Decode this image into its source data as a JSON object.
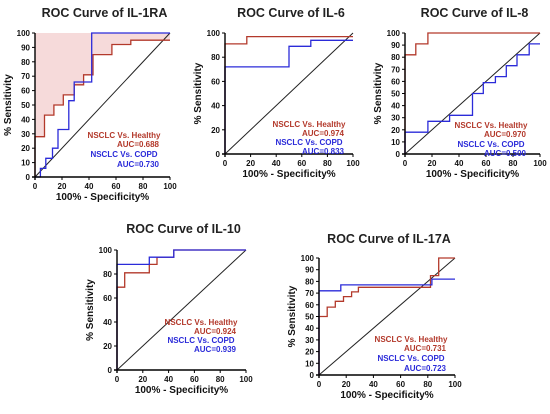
{
  "colors": {
    "healthy": "#b3392b",
    "copd": "#2b2bd9",
    "axis": "#000000",
    "diagonal": "#222222"
  },
  "chart_data": [
    {
      "type": "line",
      "title": "ROC Curve of IL-1RA",
      "xlabel": "100% - Specificity%",
      "ylabel": "% Sensitivity",
      "xlim": [
        0,
        100
      ],
      "ylim": [
        0,
        100
      ],
      "xticks": [
        0,
        20,
        40,
        60,
        80,
        100
      ],
      "yticks": [
        0,
        10,
        20,
        30,
        40,
        50,
        60,
        70,
        80,
        90,
        100
      ],
      "xtick_labels": [
        "0",
        "20",
        "40",
        "60",
        "80",
        "100"
      ],
      "ytick_labels": [
        "0",
        "10",
        "20",
        "30",
        "40",
        "50",
        "60",
        "70",
        "80",
        "90",
        "100"
      ],
      "series": [
        {
          "name": "NSCLC Vs. Healthy",
          "auc": "AUC=0.688",
          "color": "#b3392b",
          "x": [
            0,
            0,
            7,
            7,
            14,
            14,
            21,
            21,
            29,
            29,
            36,
            36,
            43,
            43,
            57,
            57,
            71,
            71,
            100
          ],
          "y": [
            0,
            28,
            28,
            43,
            43,
            50,
            50,
            57,
            57,
            64,
            64,
            71,
            71,
            85,
            85,
            92,
            92,
            95,
            95
          ]
        },
        {
          "name": "NSCLC Vs. COPD",
          "auc": "AUC=0.730",
          "color": "#2b2bd9",
          "x": [
            0,
            4,
            4,
            8,
            8,
            13,
            13,
            17,
            17,
            25,
            25,
            29,
            29,
            33,
            33,
            42,
            42,
            100
          ],
          "y": [
            0,
            0,
            6,
            6,
            13,
            13,
            20,
            20,
            33,
            33,
            53,
            53,
            66,
            66,
            66,
            66,
            100,
            100
          ]
        }
      ]
    },
    {
      "type": "line",
      "title": "ROC Curve of IL-6",
      "xlabel": "100% - Specificity%",
      "ylabel": "% Sensitivity",
      "xlim": [
        0,
        100
      ],
      "ylim": [
        0,
        100
      ],
      "xticks": [
        0,
        20,
        40,
        60,
        80,
        100
      ],
      "yticks": [
        0,
        20,
        40,
        60,
        80,
        100
      ],
      "xtick_labels": [
        "0",
        "20",
        "40",
        "60",
        "80",
        "100"
      ],
      "ytick_labels": [
        "0",
        "20",
        "40",
        "60",
        "80",
        "100"
      ],
      "series": [
        {
          "name": "NSCLC Vs. Healthy",
          "auc": "AUC=0.974",
          "color": "#b3392b",
          "x": [
            0,
            0,
            17,
            17,
            100
          ],
          "y": [
            0,
            91,
            91,
            97,
            97
          ]
        },
        {
          "name": "NSCLC Vs. COPD",
          "auc": "AUC=0.833",
          "color": "#2b2bd9",
          "x": [
            0,
            0,
            50,
            50,
            67,
            67,
            100
          ],
          "y": [
            0,
            72,
            72,
            89,
            89,
            94,
            94
          ]
        }
      ]
    },
    {
      "type": "line",
      "title": "ROC Curve of IL-8",
      "xlabel": "100% - Specificity%",
      "ylabel": "% Sensitivity",
      "xlim": [
        0,
        100
      ],
      "ylim": [
        0,
        100
      ],
      "xticks": [
        0,
        20,
        40,
        60,
        80,
        100
      ],
      "yticks": [
        0,
        10,
        20,
        30,
        40,
        50,
        60,
        70,
        80,
        90,
        100
      ],
      "xtick_labels": [
        "0",
        "20",
        "40",
        "60",
        "80",
        "100"
      ],
      "ytick_labels": [
        "0",
        "10",
        "20",
        "30",
        "40",
        "50",
        "60",
        "70",
        "80",
        "90",
        "100"
      ],
      "series": [
        {
          "name": "NSCLC Vs. Healthy",
          "auc": "AUC=0.970",
          "color": "#b3392b",
          "x": [
            0,
            0,
            8,
            8,
            17,
            17,
            100
          ],
          "y": [
            0,
            82,
            82,
            91,
            91,
            100,
            100
          ]
        },
        {
          "name": "NSCLC Vs. COPD",
          "auc": "AUC=0.500",
          "color": "#2b2bd9",
          "x": [
            0,
            0,
            17,
            17,
            33,
            33,
            50,
            50,
            58,
            58,
            67,
            67,
            75,
            75,
            83,
            83,
            92,
            92,
            100
          ],
          "y": [
            0,
            18,
            18,
            27,
            27,
            32,
            32,
            50,
            50,
            59,
            59,
            64,
            64,
            73,
            73,
            82,
            82,
            91,
            91
          ]
        }
      ]
    },
    {
      "type": "line",
      "title": "ROC Curve of IL-10",
      "xlabel": "100% - Specificity%",
      "ylabel": "% Sensitivity",
      "xlim": [
        0,
        100
      ],
      "ylim": [
        0,
        100
      ],
      "xticks": [
        0,
        20,
        40,
        60,
        80,
        100
      ],
      "yticks": [
        0,
        20,
        40,
        60,
        80,
        100
      ],
      "xtick_labels": [
        "0",
        "20",
        "40",
        "60",
        "80",
        "100"
      ],
      "ytick_labels": [
        "0",
        "20",
        "40",
        "60",
        "80",
        "100"
      ],
      "series": [
        {
          "name": "NSCLC Vs. Healthy",
          "auc": "AUC=0.924",
          "color": "#b3392b",
          "x": [
            0,
            0,
            6,
            6,
            25,
            25,
            31,
            31,
            44,
            44,
            100
          ],
          "y": [
            0,
            69,
            69,
            81,
            81,
            88,
            88,
            94,
            94,
            100,
            100
          ]
        },
        {
          "name": "NSCLC Vs. COPD",
          "auc": "AUC=0.939",
          "color": "#2b2bd9",
          "x": [
            0,
            0,
            25,
            25,
            44,
            44,
            100
          ],
          "y": [
            0,
            88,
            88,
            94,
            94,
            100,
            100
          ]
        }
      ]
    },
    {
      "type": "line",
      "title": "ROC Curve of IL-17A",
      "xlabel": "100% - Specificity%",
      "ylabel": "% Sensitivity",
      "xlim": [
        0,
        100
      ],
      "ylim": [
        0,
        100
      ],
      "xticks": [
        0,
        20,
        40,
        60,
        80,
        100
      ],
      "yticks": [
        0,
        10,
        20,
        30,
        40,
        50,
        60,
        70,
        80,
        90,
        100
      ],
      "xtick_labels": [
        "0",
        "20",
        "40",
        "60",
        "80",
        "100"
      ],
      "ytick_labels": [
        "0",
        "10",
        "20",
        "30",
        "40",
        "50",
        "60",
        "70",
        "80",
        "90",
        "100"
      ],
      "series": [
        {
          "name": "NSCLC Vs. Healthy",
          "auc": "AUC=0.731",
          "color": "#b3392b",
          "x": [
            0,
            0,
            6,
            6,
            12,
            12,
            18,
            18,
            24,
            24,
            29,
            29,
            82,
            82,
            88,
            88,
            100
          ],
          "y": [
            0,
            50,
            50,
            58,
            58,
            63,
            63,
            67,
            67,
            71,
            71,
            75,
            75,
            85,
            85,
            100,
            100
          ]
        },
        {
          "name": "NSCLC Vs. COPD",
          "auc": "AUC=0.723",
          "color": "#2b2bd9",
          "x": [
            0,
            0,
            16,
            16,
            83,
            83,
            100
          ],
          "y": [
            0,
            72,
            72,
            77,
            77,
            82,
            82
          ]
        }
      ]
    }
  ]
}
